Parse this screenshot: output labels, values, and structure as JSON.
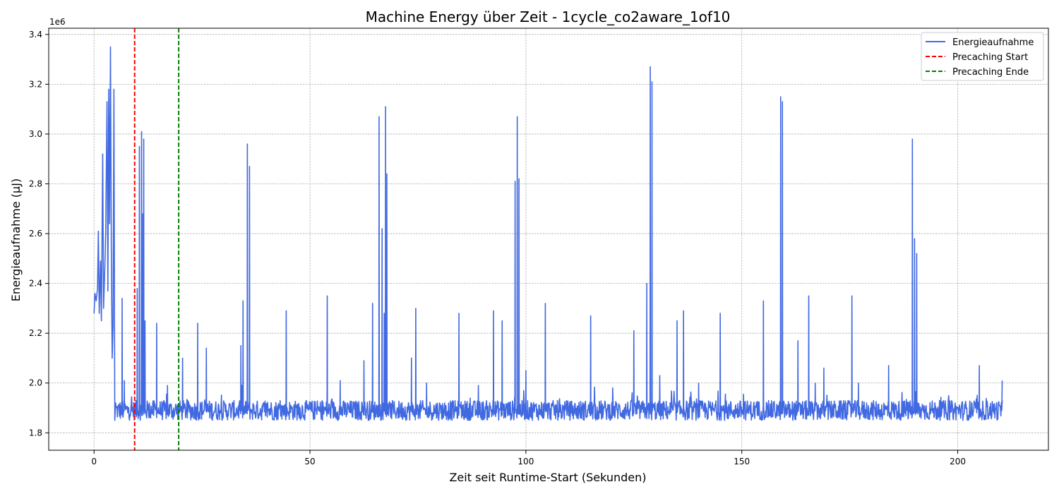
{
  "chart_data": {
    "type": "line",
    "title": "Machine Energy über Zeit - 1cycle_co2aware_1of10",
    "xlabel": "Zeit seit Runtime-Start (Sekunden)",
    "ylabel": "Energieaufnahme (µJ)",
    "y_offset_label": "1e6",
    "xlim": [
      -10.5,
      221
    ],
    "ylim": [
      1730000,
      3425000
    ],
    "x_ticks": [
      0,
      50,
      100,
      150,
      200
    ],
    "x_tick_labels": [
      "0",
      "50",
      "100",
      "150",
      "200"
    ],
    "y_ticks": [
      1800000,
      2000000,
      2200000,
      2400000,
      2600000,
      2800000,
      3000000,
      3200000,
      3400000
    ],
    "y_tick_labels": [
      "1.8",
      "2.0",
      "2.2",
      "2.4",
      "2.6",
      "2.8",
      "3.0",
      "3.2",
      "3.4"
    ],
    "grid": true,
    "legend_position": "top-right",
    "series": [
      {
        "name": "Energieaufnahme",
        "color": "#4169e1",
        "x_range": [
          0,
          210.5
        ],
        "baseline": 1890000,
        "noise_amplitude": 40000,
        "start_segment": [
          [
            0,
            2280000
          ],
          [
            0.2,
            2360000
          ],
          [
            0.5,
            2330000
          ],
          [
            0.8,
            2380000
          ],
          [
            1.0,
            2610000
          ],
          [
            1.2,
            2280000
          ],
          [
            1.5,
            2490000
          ],
          [
            1.7,
            2250000
          ],
          [
            2.0,
            2920000
          ],
          [
            2.2,
            2300000
          ],
          [
            2.5,
            2470000
          ],
          [
            2.7,
            2610000
          ],
          [
            3.0,
            3130000
          ],
          [
            3.2,
            2370000
          ],
          [
            3.4,
            3180000
          ],
          [
            3.6,
            2640000
          ],
          [
            3.8,
            3350000
          ],
          [
            4.0,
            2540000
          ],
          [
            4.2,
            2100000
          ],
          [
            4.4,
            2230000
          ],
          [
            4.6,
            3180000
          ],
          [
            4.8,
            1850000
          ],
          [
            5.0,
            1920000
          ]
        ],
        "peaks": [
          [
            6.5,
            2340000
          ],
          [
            7.0,
            2010000
          ],
          [
            10.0,
            2380000
          ],
          [
            10.5,
            2950000
          ],
          [
            11.0,
            3010000
          ],
          [
            11.3,
            2680000
          ],
          [
            11.5,
            2980000
          ],
          [
            11.8,
            2250000
          ],
          [
            14.5,
            2240000
          ],
          [
            17.0,
            1990000
          ],
          [
            20.5,
            2100000
          ],
          [
            24.0,
            2240000
          ],
          [
            26.0,
            2140000
          ],
          [
            34.0,
            2150000
          ],
          [
            34.5,
            2330000
          ],
          [
            35.5,
            2960000
          ],
          [
            36.0,
            2870000
          ],
          [
            44.5,
            2290000
          ],
          [
            54.0,
            2350000
          ],
          [
            57.0,
            2010000
          ],
          [
            62.5,
            2090000
          ],
          [
            64.5,
            2320000
          ],
          [
            66.0,
            3070000
          ],
          [
            66.7,
            2620000
          ],
          [
            67.2,
            2280000
          ],
          [
            67.5,
            3110000
          ],
          [
            67.8,
            2840000
          ],
          [
            73.5,
            2100000
          ],
          [
            74.5,
            2300000
          ],
          [
            77.0,
            2000000
          ],
          [
            84.5,
            2280000
          ],
          [
            89.0,
            1990000
          ],
          [
            92.5,
            2290000
          ],
          [
            94.5,
            2250000
          ],
          [
            97.5,
            2810000
          ],
          [
            98.0,
            3070000
          ],
          [
            98.4,
            2820000
          ],
          [
            100.0,
            2050000
          ],
          [
            104.5,
            2320000
          ],
          [
            115.0,
            2270000
          ],
          [
            125.0,
            2210000
          ],
          [
            128.0,
            2400000
          ],
          [
            128.8,
            3270000
          ],
          [
            129.2,
            3210000
          ],
          [
            131.0,
            2030000
          ],
          [
            135.0,
            2250000
          ],
          [
            136.5,
            2290000
          ],
          [
            140.0,
            2000000
          ],
          [
            145.0,
            2280000
          ],
          [
            155.0,
            2330000
          ],
          [
            159.0,
            3150000
          ],
          [
            159.4,
            3130000
          ],
          [
            163.0,
            2170000
          ],
          [
            165.5,
            2350000
          ],
          [
            167.0,
            2000000
          ],
          [
            169.0,
            2060000
          ],
          [
            175.5,
            2350000
          ],
          [
            177.0,
            2000000
          ],
          [
            184.0,
            2070000
          ],
          [
            189.5,
            2980000
          ],
          [
            190.0,
            2580000
          ],
          [
            190.5,
            2520000
          ],
          [
            205.0,
            2070000
          ]
        ],
        "end_point": [
          210.3,
          2010000
        ]
      },
      {
        "name": "Precaching Start",
        "color": "#ff0000",
        "x": 9.4,
        "style": "dashed"
      },
      {
        "name": "Precaching Ende",
        "color": "#008000",
        "x": 19.6,
        "style": "dashed"
      }
    ]
  }
}
